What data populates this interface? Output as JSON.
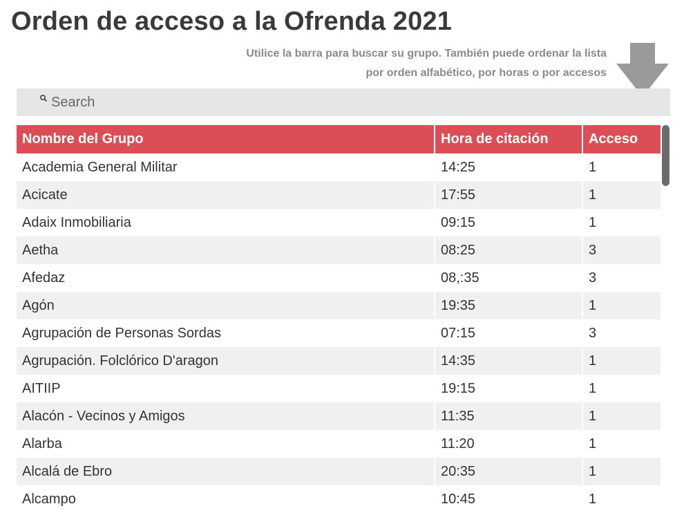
{
  "page": {
    "title": "Orden de acceso a la Ofrenda 2021",
    "hint_line1": "Utilice la barra para buscar su grupo. También puede ordenar la lista",
    "hint_line2": "por orden alfabético, por horas o por accesos",
    "arrow_icon": "arrow-down-icon"
  },
  "search": {
    "placeholder": "Search",
    "value": "",
    "icon": "search-icon"
  },
  "table": {
    "columns": [
      "Nombre del Grupo",
      "Hora de citación",
      "Acceso"
    ],
    "rows": [
      [
        "Academia General Militar",
        "14:25",
        "1"
      ],
      [
        "Acicate",
        "17:55",
        "1"
      ],
      [
        "Adaix Inmobiliaria",
        "09:15",
        "1"
      ],
      [
        "Aetha",
        "08:25",
        "3"
      ],
      [
        "Afedaz",
        "08,:35",
        "3"
      ],
      [
        "Agón",
        "19:35",
        "1"
      ],
      [
        "Agrupación de Personas Sordas",
        "07:15",
        "3"
      ],
      [
        "Agrupación. Folclórico D'aragon",
        "14:35",
        "1"
      ],
      [
        "AITIIP",
        "19:15",
        "1"
      ],
      [
        "Alacón - Vecinos y Amigos",
        "11:35",
        "1"
      ],
      [
        "Alarba",
        "11:20",
        "1"
      ],
      [
        "Alcalá de Ebro",
        "20:35",
        "1"
      ],
      [
        "Alcampo",
        "10:45",
        "1"
      ]
    ]
  },
  "colors": {
    "header_bg": "#dc4d55",
    "row_alt_bg": "#f0f0f0",
    "search_bg": "#e6e6e6",
    "arrow": "#9a9a9a"
  }
}
